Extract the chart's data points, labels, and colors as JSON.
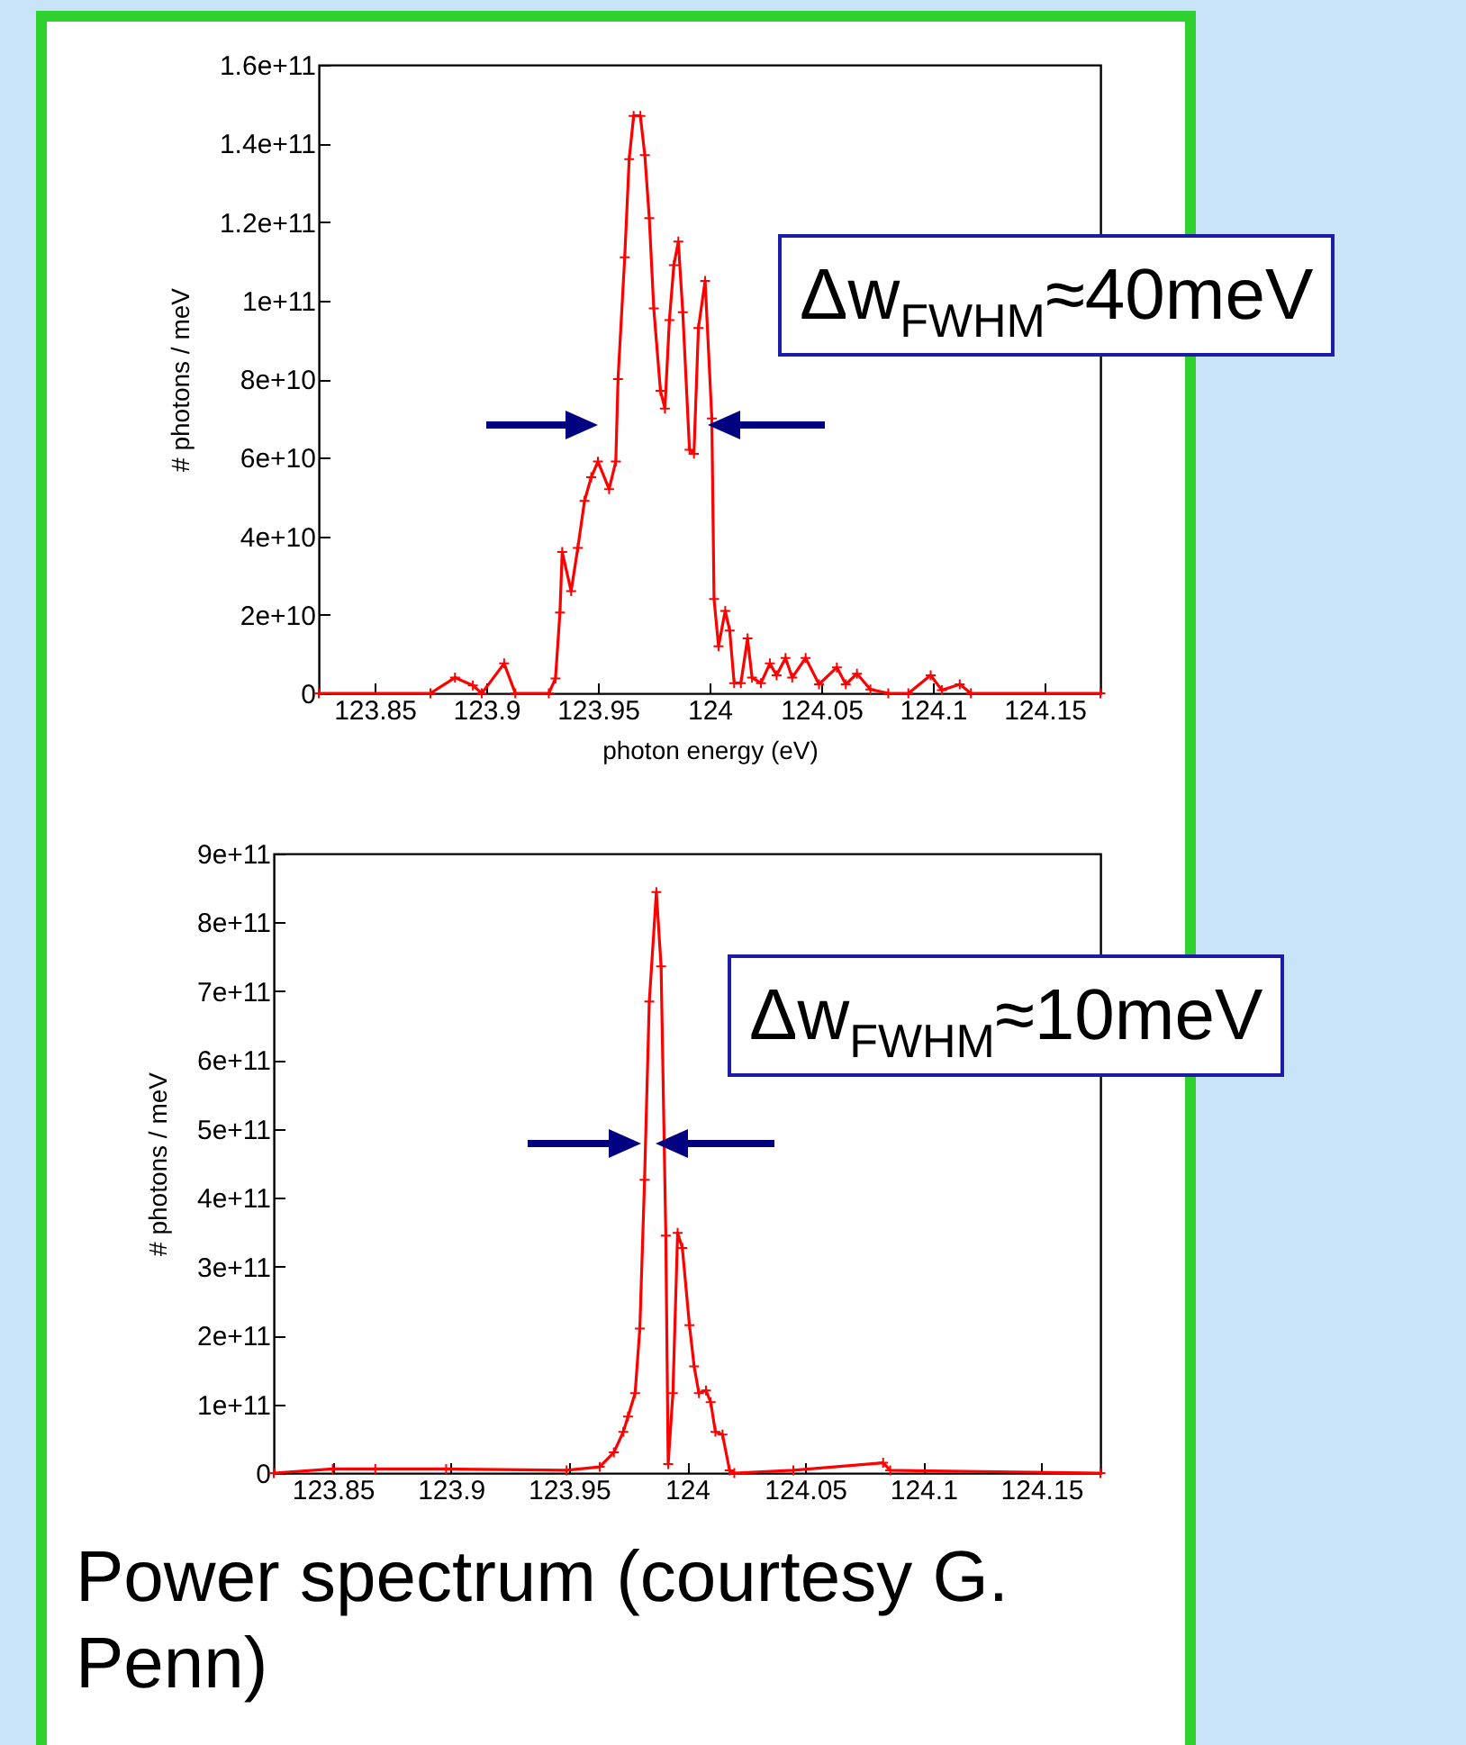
{
  "chart_data": [
    {
      "type": "line",
      "xlabel": "photon energy (eV)",
      "ylabel": "# photons / meV",
      "marker": "cross",
      "grid": false,
      "xlim": [
        123.825,
        124.175
      ],
      "ylim": [
        0,
        160000000000.0
      ],
      "xticks": [
        123.85,
        123.9,
        123.95,
        124,
        124.05,
        124.1,
        124.15
      ],
      "yticks": [
        0,
        {
          "value": 20000000000.0,
          "label": "2e+10"
        },
        {
          "value": 40000000000.0,
          "label": "4e+10"
        },
        {
          "value": 60000000000.0,
          "label": "6e+10"
        },
        {
          "value": 80000000000.0,
          "label": "8e+10"
        },
        {
          "value": 100000000000.0,
          "label": "1e+11"
        },
        {
          "value": 120000000000.0,
          "label": "1.2e+11"
        },
        {
          "value": 140000000000.0,
          "label": "1.4e+11"
        },
        {
          "value": 160000000000.0,
          "label": "1.6e+11"
        }
      ],
      "x": [
        123.825,
        123.875,
        123.886,
        123.894,
        123.898,
        123.908,
        123.913,
        123.928,
        123.931,
        123.933,
        123.934,
        123.938,
        123.941,
        123.944,
        123.947,
        123.95,
        123.955,
        123.958,
        123.959,
        123.962,
        123.964,
        123.966,
        123.969,
        123.971,
        123.973,
        123.975,
        123.978,
        123.98,
        123.982,
        123.984,
        123.986,
        123.988,
        123.991,
        123.993,
        123.995,
        123.998,
        124.001,
        124.002,
        124.004,
        124.007,
        124.009,
        124.011,
        124.014,
        124.017,
        124.019,
        124.023,
        124.027,
        124.03,
        124.034,
        124.037,
        124.043,
        124.049,
        124.057,
        124.061,
        124.066,
        124.072,
        124.08,
        124.089,
        124.099,
        124.104,
        124.112,
        124.117,
        124.175
      ],
      "series": [
        {
          "color": "#ff0000",
          "values": [
            0,
            0,
            4000000000.0,
            2000000000.0,
            0,
            7600000000.0,
            0,
            0,
            3800000000.0,
            20600000000.0,
            36000000000.0,
            26000000000.0,
            37000000000.0,
            49000000000.0,
            55000000000.0,
            59000000000.0,
            52000000000.0,
            59000000000.0,
            80000000000.0,
            111000000000.0,
            136000000000.0,
            147000000000.0,
            147000000000.0,
            137000000000.0,
            121000000000.0,
            98000000000.0,
            77000000000.0,
            72500000000.0,
            95000000000.0,
            109000000000.0,
            115000000000.0,
            97000000000.0,
            62000000000.0,
            61000000000.0,
            93000000000.0,
            105000000000.0,
            70000000000.0,
            24000000000.0,
            12000000000.0,
            21000000000.0,
            16000000000.0,
            2600000000.0,
            2600000000.0,
            14000000000.0,
            4000000000.0,
            2600000000.0,
            7600000000.0,
            4600000000.0,
            9000000000.0,
            4000000000.0,
            9000000000.0,
            2300000000.0,
            6600000000.0,
            2300000000.0,
            5000000000.0,
            1000000000.0,
            0,
            0,
            4600000000.0,
            800000000.0,
            2300000000.0,
            0,
            0
          ]
        }
      ],
      "annotations": [
        "Δw$_{FWHM}$≈40meV"
      ]
    },
    {
      "type": "line",
      "ylabel": "# photons / meV",
      "marker": "cross",
      "grid": false,
      "xlim": [
        123.825,
        124.175
      ],
      "ylim": [
        0,
        900000000000.0
      ],
      "xticks": [
        123.85,
        123.9,
        123.95,
        124,
        124.05,
        124.1,
        124.15
      ],
      "yticks": [
        0,
        {
          "value": 100000000000.0,
          "label": "1e+11"
        },
        {
          "value": 200000000000.0,
          "label": "2e+11"
        },
        {
          "value": 300000000000.0,
          "label": "3e+11"
        },
        {
          "value": 400000000000.0,
          "label": "4e+11"
        },
        {
          "value": 500000000000.0,
          "label": "5e+11"
        },
        {
          "value": 600000000000.0,
          "label": "6e+11"
        },
        {
          "value": 700000000000.0,
          "label": "7e+11"
        },
        {
          "value": 800000000000.0,
          "label": "8e+11"
        },
        {
          "value": 900000000000.0,
          "label": "9e+11"
        }
      ],
      "x": [
        123.825,
        123.85,
        123.868,
        123.898,
        123.949,
        123.963,
        123.969,
        123.973,
        123.975,
        123.978,
        123.98,
        123.982,
        123.984,
        123.987,
        123.989,
        123.991,
        123.992,
        123.994,
        123.996,
        123.998,
        124.001,
        124.003,
        124.005,
        124.008,
        124.01,
        124.012,
        124.015,
        124.018,
        124.02,
        124.045,
        124.083,
        124.086,
        124.175
      ],
      "series": [
        {
          "color": "#ff0000",
          "values": [
            0,
            6000000000.0,
            6000000000.0,
            6000000000.0,
            4000000000.0,
            9000000000.0,
            30000000000.0,
            60000000000.0,
            82000000000.0,
            116000000000.0,
            210000000000.0,
            426000000000.0,
            685000000000.0,
            844000000000.0,
            736000000000.0,
            345000000000.0,
            13000000000.0,
            116000000000.0,
            349000000000.0,
            327000000000.0,
            215000000000.0,
            155000000000.0,
            116000000000.0,
            120000000000.0,
            103000000000.0,
            60000000000.0,
            56000000000.0,
            4000000000.0,
            0,
            4000000000.0,
            15000000000.0,
            4000000000.0,
            0
          ]
        }
      ],
      "annotations": [
        "Δw$_{FWHM}$≈10meV",
        "Power spectrum (courtesy G. Penn)"
      ]
    }
  ]
}
